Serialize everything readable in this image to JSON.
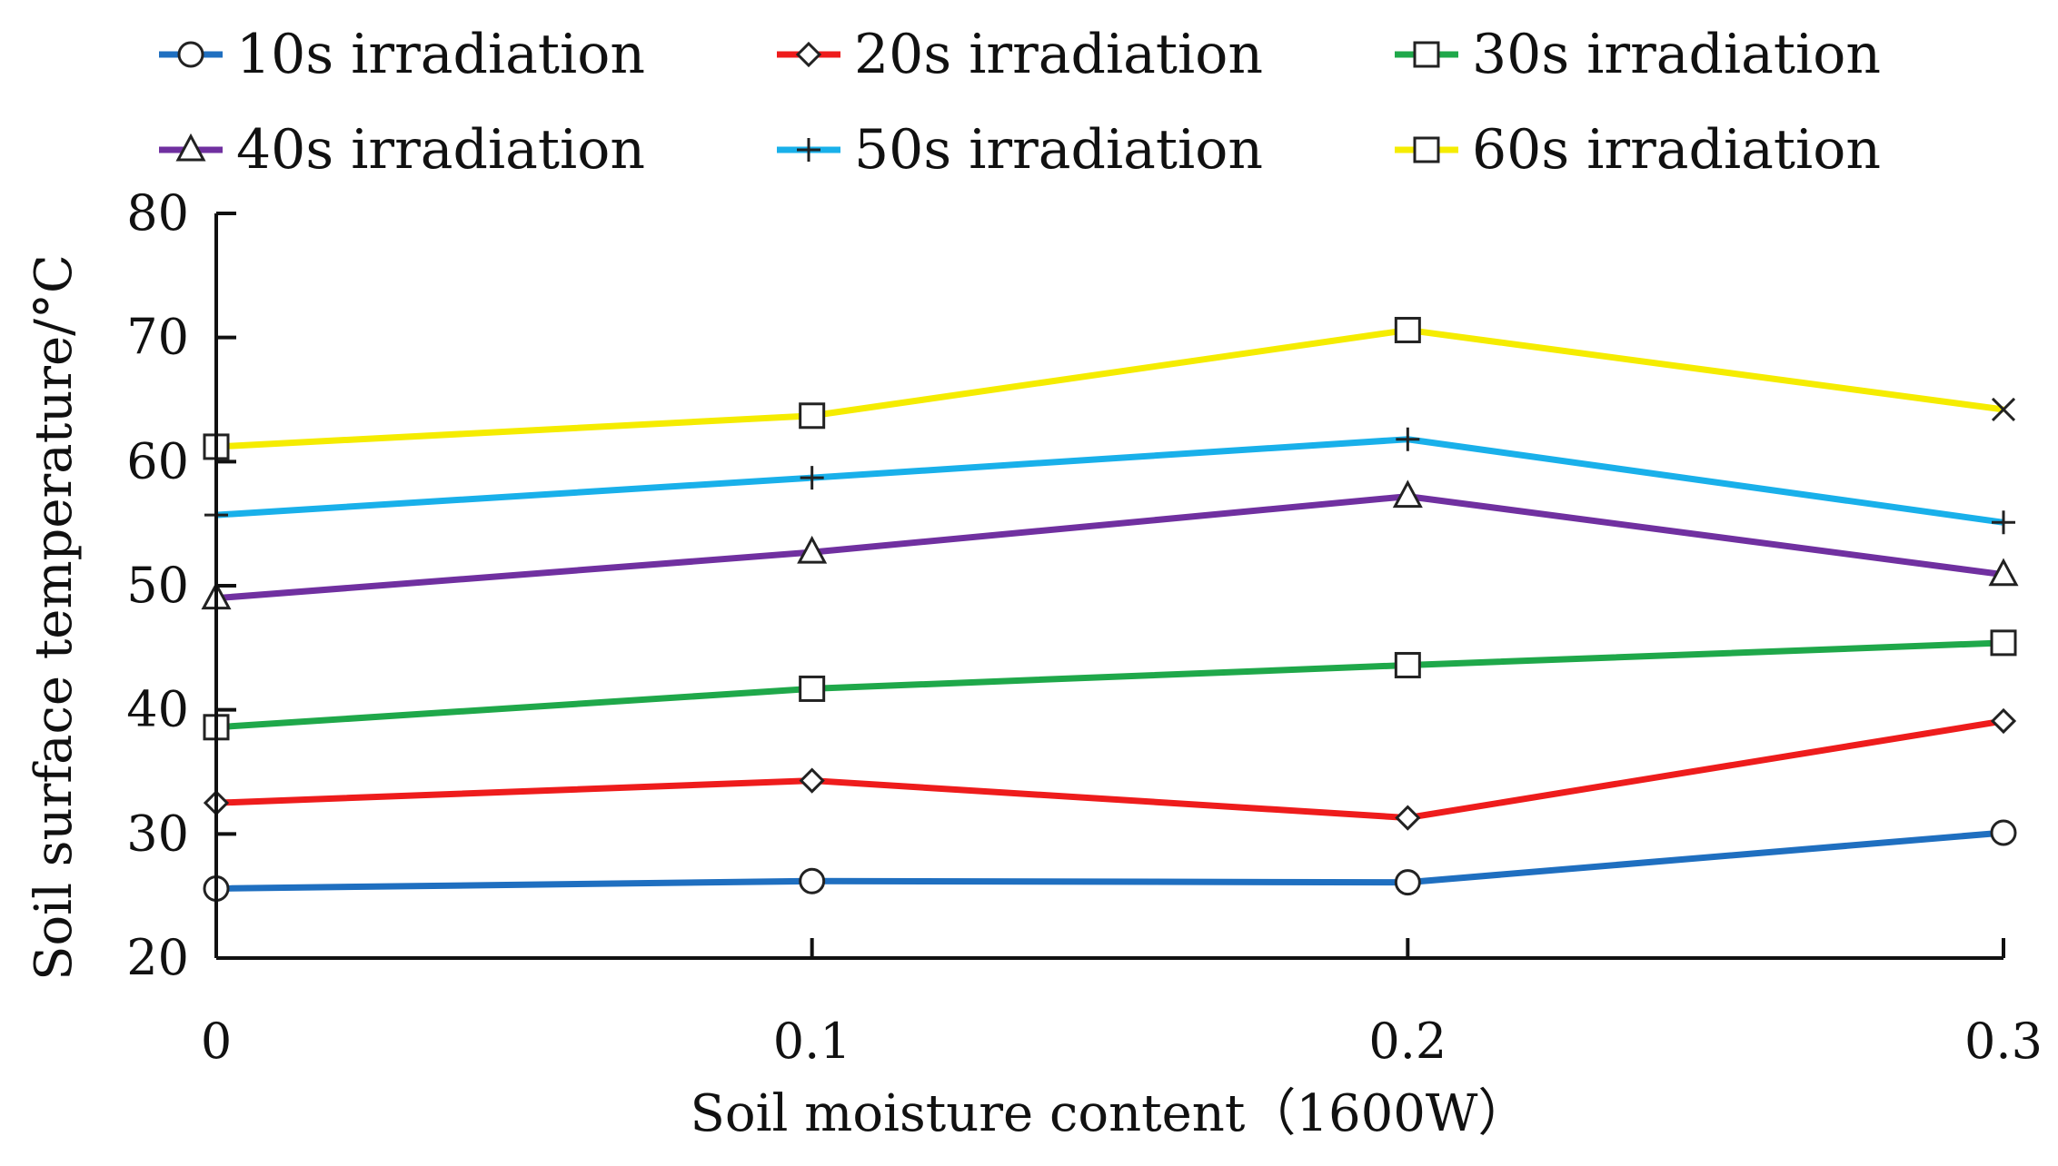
{
  "chart_data": {
    "type": "line",
    "title": "",
    "xlabel": "Soil moisture content（1600W）",
    "ylabel": "Soil surface temperature/°C",
    "x": [
      "0",
      "0.1",
      "0.2",
      "0.3"
    ],
    "xlim": [
      0,
      0.3
    ],
    "ylim": [
      20,
      80
    ],
    "yticks": [
      "20",
      "30",
      "40",
      "50",
      "60",
      "70",
      "80"
    ],
    "grid": false,
    "legend_position": "top",
    "series": [
      {
        "name": "10s irradiation",
        "color": "#1f6fc0",
        "marker": "circle",
        "values": [
          25.6,
          26.2,
          26.1,
          30.1
        ]
      },
      {
        "name": "20s irradiation",
        "color": "#ee1c1c",
        "marker": "diamond",
        "values": [
          32.5,
          34.3,
          31.3,
          39.1
        ]
      },
      {
        "name": "30s irradiation",
        "color": "#1fa84a",
        "marker": "square",
        "values": [
          38.6,
          41.7,
          43.6,
          45.4
        ]
      },
      {
        "name": "40s irradiation",
        "color": "#7030a0",
        "marker": "triangle",
        "values": [
          49.0,
          52.7,
          57.2,
          50.9
        ]
      },
      {
        "name": "50s irradiation",
        "color": "#19b0ea",
        "marker": "plus",
        "values": [
          55.7,
          58.7,
          61.8,
          55.1
        ]
      },
      {
        "name": "60s irradiation",
        "color": "#f5ec00",
        "marker": "square",
        "values": [
          61.2,
          63.7,
          70.6,
          64.2
        ],
        "last_marker": "cross"
      }
    ]
  }
}
